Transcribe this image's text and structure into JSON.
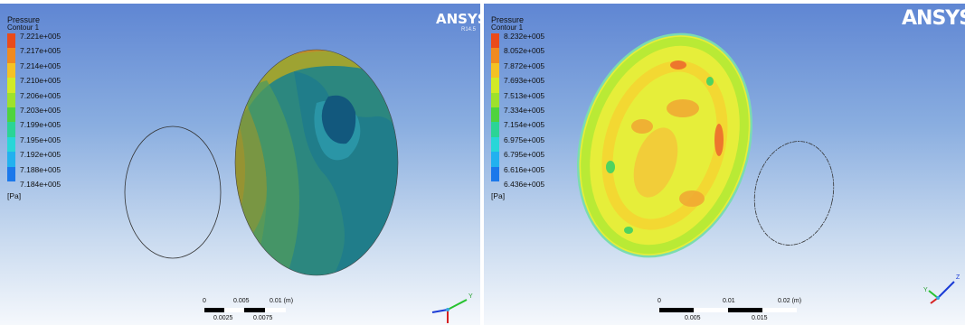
{
  "left": {
    "legend": {
      "title": "Pressure",
      "subtitle": "Contour 1",
      "values": [
        "7.221e+005",
        "7.217e+005",
        "7.214e+005",
        "7.210e+005",
        "7.206e+005",
        "7.203e+005",
        "7.199e+005",
        "7.195e+005",
        "7.192e+005",
        "7.188e+005",
        "7.184e+005"
      ],
      "unit": "[Pa]"
    },
    "logo": "ANSYS",
    "version": "R14.5",
    "scale": {
      "top": [
        "0",
        "0.005",
        "0.01  (m)"
      ],
      "bottom": [
        "0.0025",
        "0.0075"
      ]
    },
    "axis": {
      "y": "Y"
    }
  },
  "right": {
    "legend": {
      "title": "Pressure",
      "subtitle": "Contour 1",
      "values": [
        "8.232e+005",
        "8.052e+005",
        "7.872e+005",
        "7.693e+005",
        "7.513e+005",
        "7.334e+005",
        "7.154e+005",
        "6.975e+005",
        "6.795e+005",
        "6.616e+005",
        "6.436e+005"
      ],
      "unit": "[Pa]"
    },
    "logo": "ANSYS",
    "scale": {
      "top": [
        "0",
        "0.01",
        "0.02  (m)"
      ],
      "bottom": [
        "0.005",
        "0.015"
      ]
    },
    "axis": {
      "y": "Y",
      "z": "Z"
    }
  },
  "colors": {
    "legend": [
      "#ea4b1a",
      "#f08a1f",
      "#f4c224",
      "#d2ea27",
      "#9ee12c",
      "#4fd33e",
      "#2bd496",
      "#28d6d8",
      "#22b1ef",
      "#1b78eb",
      "#1239cf"
    ],
    "left_body": "#2c877f",
    "right_body": "#e6ee3a"
  }
}
